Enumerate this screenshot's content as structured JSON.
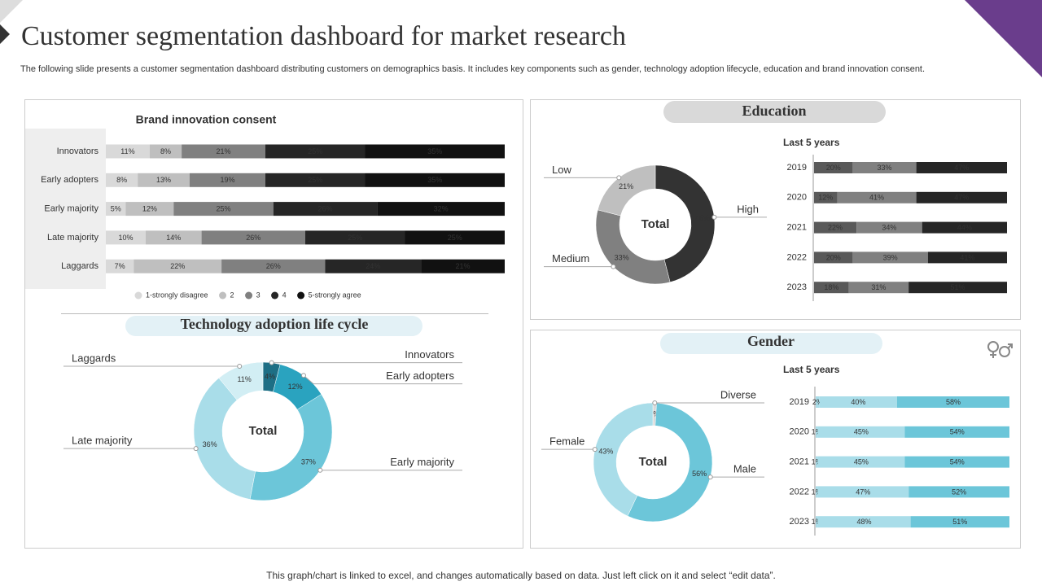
{
  "header": {
    "title": "Customer segmentation dashboard for market research",
    "subtitle": "The following slide presents a customer segmentation dashboard distributing customers on demographics basis. It includes key components such as gender, technology adoption lifecycle, education and brand innovation consent."
  },
  "footer": "This graph/chart is linked to excel,  and changes automatically based on data. Just left click on it and select “edit data”.",
  "chart_data": [
    {
      "type": "bar",
      "orientation": "horizontal",
      "stacked": true,
      "title": "Brand innovation consent",
      "categories": [
        "Innovators",
        "Early adopters",
        "Early majority",
        "Late majority",
        "Laggards"
      ],
      "series": [
        {
          "name": "1-strongly disagree",
          "color": "#d9d9d9",
          "values": [
            11,
            8,
            5,
            10,
            7
          ],
          "value_labels": [
            "11%",
            "8%",
            "5%",
            "10%",
            "7%"
          ]
        },
        {
          "name": "2",
          "color": "#bfbfbf",
          "values": [
            8,
            13,
            12,
            14,
            22
          ],
          "value_labels": [
            "8%",
            "13%",
            "12%",
            "14%",
            "22%"
          ]
        },
        {
          "name": "3",
          "color": "#808080",
          "values": [
            21,
            19,
            25,
            26,
            26
          ],
          "value_labels": [
            "21%",
            "19%",
            "25%",
            "26%",
            "26%"
          ]
        },
        {
          "name": "4",
          "color": "#262626",
          "values": [
            25,
            25,
            26,
            25,
            24
          ],
          "value_labels": [
            "25%",
            "25%",
            "26%",
            "25%",
            "24%"
          ]
        },
        {
          "name": "5-strongly agree",
          "color": "#111111",
          "values": [
            35,
            35,
            32,
            25,
            21
          ],
          "value_labels": [
            "35%",
            "35%",
            "32%",
            "25%",
            "21%"
          ]
        }
      ]
    },
    {
      "type": "donut",
      "title": "Education",
      "center_label": "Total",
      "categories": [
        "High",
        "Medium",
        "Low"
      ],
      "values": [
        46,
        33,
        21
      ],
      "value_labels": [
        "46%",
        "33%",
        "21%"
      ],
      "colors": [
        "#333333",
        "#808080",
        "#bfbfbf"
      ]
    },
    {
      "type": "bar",
      "orientation": "horizontal",
      "stacked": true,
      "title": "Last 5 years",
      "categories": [
        "2019",
        "2020",
        "2021",
        "2022",
        "2023"
      ],
      "series": [
        {
          "color": "#595959",
          "values": [
            20,
            12,
            22,
            20,
            18
          ],
          "value_labels": [
            "20%",
            "12%",
            "22%",
            "20%",
            "18%"
          ]
        },
        {
          "color": "#808080",
          "values": [
            33,
            41,
            34,
            39,
            31
          ],
          "value_labels": [
            "33%",
            "41%",
            "34%",
            "39%",
            "31%"
          ]
        },
        {
          "color": "#262626",
          "values": [
            47,
            47,
            44,
            41,
            51
          ],
          "value_labels": [
            "47%",
            "47%",
            "44%",
            "41%",
            "51%"
          ]
        }
      ]
    },
    {
      "type": "donut",
      "title": "Technology adoption life cycle",
      "center_label": "Total",
      "categories": [
        "Innovators",
        "Early adopters",
        "Early majority",
        "Late majority",
        "Laggards"
      ],
      "values": [
        4,
        12,
        37,
        36,
        11
      ],
      "value_labels": [
        "4%",
        "12%",
        "37%",
        "36%",
        "11%"
      ],
      "colors": [
        "#1d6f85",
        "#2aa3bf",
        "#6cc6d9",
        "#a9dde9",
        "#d2eef4"
      ]
    },
    {
      "type": "donut",
      "title": "Gender",
      "center_label": "Total",
      "categories": [
        "Diverse",
        "Male",
        "Female"
      ],
      "values": [
        1,
        56,
        43
      ],
      "value_labels": [
        "1%",
        "56%",
        "43%"
      ],
      "colors": [
        "#d9d9d9",
        "#6cc6d9",
        "#a9dde9"
      ]
    },
    {
      "type": "bar",
      "orientation": "horizontal",
      "stacked": true,
      "title": "Last 5 years",
      "categories": [
        "2019",
        "2020",
        "2021",
        "2022",
        "2023"
      ],
      "series": [
        {
          "color": "#a9dde9",
          "values": [
            2,
            1,
            1,
            1,
            1
          ],
          "value_labels": [
            "2%",
            "1%",
            "1%",
            "1%",
            "1%"
          ]
        },
        {
          "color": "#a9dde9",
          "values": [
            40,
            45,
            45,
            47,
            48
          ],
          "value_labels": [
            "40%",
            "45%",
            "45%",
            "47%",
            "48%"
          ]
        },
        {
          "color": "#6cc6d9",
          "values": [
            58,
            54,
            54,
            52,
            51
          ],
          "value_labels": [
            "58%",
            "54%",
            "54%",
            "52%",
            "51%"
          ]
        }
      ]
    }
  ]
}
